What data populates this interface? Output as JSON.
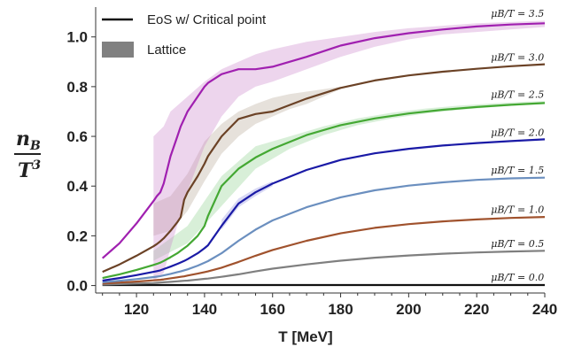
{
  "chart_data": {
    "type": "line",
    "xlabel": "T [MeV]",
    "ylabel": "n_B / T^3",
    "ylabel_num": "n",
    "ylabel_num_sub": "B",
    "ylabel_den": "T",
    "ylabel_den_sup": "3",
    "xlim": [
      108,
      240
    ],
    "ylim": [
      -0.03,
      1.12
    ],
    "xticks": [
      120,
      140,
      160,
      180,
      200,
      220,
      240
    ],
    "yticks": [
      0.0,
      0.2,
      0.4,
      0.6,
      0.8,
      1.0
    ],
    "grid": false,
    "legend_position": "top-left",
    "legend": [
      {
        "label": "EoS w/ Critical point",
        "kind": "line",
        "color": "#000000"
      },
      {
        "label": "Lattice",
        "kind": "band",
        "color": "#808080"
      }
    ],
    "x": [
      110,
      115,
      120,
      125,
      126,
      127,
      128,
      130,
      132,
      133,
      134,
      135,
      138,
      140,
      141,
      145,
      150,
      155,
      160,
      170,
      180,
      190,
      200,
      210,
      220,
      230,
      240
    ],
    "series": [
      {
        "name": "μB/T = 0.0",
        "color": "#111111",
        "values": [
          0.002,
          0.002,
          0.002,
          0.002,
          0.002,
          0.002,
          0.002,
          0.002,
          0.002,
          0.002,
          0.002,
          0.002,
          0.002,
          0.002,
          0.002,
          0.002,
          0.002,
          0.002,
          0.002,
          0.002,
          0.002,
          0.002,
          0.002,
          0.002,
          0.002,
          0.002,
          0.002
        ]
      },
      {
        "name": "μB/T = 0.5",
        "color": "#7f7f7f",
        "values": [
          0.004,
          0.006,
          0.008,
          0.01,
          0.011,
          0.012,
          0.013,
          0.015,
          0.017,
          0.018,
          0.019,
          0.02,
          0.024,
          0.027,
          0.028,
          0.035,
          0.045,
          0.057,
          0.068,
          0.085,
          0.1,
          0.112,
          0.121,
          0.128,
          0.133,
          0.137,
          0.14
        ]
      },
      {
        "name": "μB/T = 1.0",
        "color": "#a0522d",
        "values": [
          0.008,
          0.012,
          0.016,
          0.021,
          0.022,
          0.023,
          0.025,
          0.029,
          0.033,
          0.035,
          0.037,
          0.04,
          0.048,
          0.054,
          0.057,
          0.072,
          0.095,
          0.12,
          0.143,
          0.18,
          0.21,
          0.232,
          0.247,
          0.258,
          0.266,
          0.272,
          0.276
        ]
      },
      {
        "name": "μB/T = 1.5",
        "color": "#6b8fbf",
        "values": [
          0.013,
          0.019,
          0.026,
          0.034,
          0.036,
          0.038,
          0.041,
          0.047,
          0.054,
          0.057,
          0.061,
          0.065,
          0.08,
          0.092,
          0.098,
          0.13,
          0.18,
          0.225,
          0.262,
          0.315,
          0.355,
          0.383,
          0.402,
          0.415,
          0.425,
          0.431,
          0.434
        ]
      },
      {
        "name": "μB/T = 2.0",
        "color": "#1a1aa6",
        "values": [
          0.02,
          0.03,
          0.042,
          0.055,
          0.058,
          0.061,
          0.066,
          0.076,
          0.087,
          0.093,
          0.099,
          0.106,
          0.13,
          0.15,
          0.162,
          0.24,
          0.33,
          0.375,
          0.41,
          0.465,
          0.505,
          0.532,
          0.55,
          0.563,
          0.573,
          0.581,
          0.588
        ]
      },
      {
        "name": "μB/T = 2.5",
        "color": "#44a833",
        "values": [
          0.03,
          0.045,
          0.063,
          0.083,
          0.087,
          0.092,
          0.099,
          0.114,
          0.13,
          0.14,
          0.15,
          0.16,
          0.2,
          0.24,
          0.28,
          0.4,
          0.47,
          0.515,
          0.55,
          0.605,
          0.645,
          0.672,
          0.692,
          0.707,
          0.718,
          0.727,
          0.734
        ]
      },
      {
        "name": "μB/T = 3.0",
        "color": "#6b4226",
        "values": [
          0.055,
          0.085,
          0.12,
          0.158,
          0.167,
          0.178,
          0.19,
          0.22,
          0.255,
          0.275,
          0.345,
          0.375,
          0.44,
          0.49,
          0.52,
          0.6,
          0.67,
          0.69,
          0.7,
          0.752,
          0.795,
          0.825,
          0.845,
          0.86,
          0.872,
          0.882,
          0.89
        ]
      },
      {
        "name": "μB/T = 3.5",
        "color": "#a020b0",
        "values": [
          0.11,
          0.17,
          0.25,
          0.34,
          0.36,
          0.375,
          0.41,
          0.52,
          0.6,
          0.64,
          0.67,
          0.7,
          0.76,
          0.8,
          0.815,
          0.85,
          0.87,
          0.87,
          0.88,
          0.92,
          0.965,
          0.995,
          1.015,
          1.03,
          1.042,
          1.05,
          1.055
        ]
      }
    ],
    "bands": [
      {
        "name": "Lattice μB/T = 2.0",
        "color": "#9090e0",
        "x": [
          145,
          150,
          155,
          160
        ],
        "low": [
          0.225,
          0.315,
          0.36,
          0.4
        ],
        "high": [
          0.265,
          0.35,
          0.39,
          0.42
        ]
      },
      {
        "name": "Lattice μB/T = 2.5",
        "color": "#8fd08f",
        "x": [
          125,
          135,
          145,
          155,
          165,
          175,
          185,
          195,
          205,
          215,
          225,
          235,
          240
        ],
        "low": [
          0.1,
          0.17,
          0.32,
          0.47,
          0.55,
          0.605,
          0.645,
          0.672,
          0.692,
          0.707,
          0.718,
          0.727,
          0.73
        ],
        "high": [
          0.14,
          0.24,
          0.44,
          0.56,
          0.6,
          0.64,
          0.672,
          0.695,
          0.712,
          0.724,
          0.733,
          0.74,
          0.742
        ]
      },
      {
        "name": "Lattice μB/T = 3.0",
        "color": "#b8a898",
        "x": [
          125,
          130,
          135,
          140,
          145,
          150,
          155,
          160,
          165,
          170,
          175,
          180
        ],
        "low": [
          0.2,
          0.22,
          0.3,
          0.42,
          0.53,
          0.6,
          0.65,
          0.68,
          0.71,
          0.73,
          0.76,
          0.79
        ],
        "high": [
          0.33,
          0.36,
          0.45,
          0.58,
          0.65,
          0.7,
          0.73,
          0.755,
          0.77,
          0.78,
          0.79,
          0.8
        ]
      },
      {
        "name": "Lattice μB/T = 3.5",
        "color": "#cc88cc",
        "x": [
          125,
          128,
          130,
          135,
          140,
          145,
          150,
          155,
          160,
          170,
          180,
          190,
          200,
          210,
          220,
          230,
          240
        ],
        "low": [
          0.02,
          0.05,
          0.15,
          0.38,
          0.56,
          0.68,
          0.76,
          0.8,
          0.82,
          0.87,
          0.92,
          0.96,
          0.99,
          1.01,
          1.02,
          1.03,
          1.04
        ],
        "high": [
          0.6,
          0.64,
          0.7,
          0.76,
          0.82,
          0.87,
          0.9,
          0.93,
          0.95,
          0.98,
          1.0,
          1.02,
          1.035,
          1.045,
          1.055,
          1.06,
          1.065
        ]
      }
    ],
    "curve_labels": [
      {
        "text": "μB/T = 3.5",
        "x": 232,
        "y": 1.08
      },
      {
        "text": "μB/T = 3.0",
        "x": 232,
        "y": 0.905
      },
      {
        "text": "μB/T = 2.5",
        "x": 232,
        "y": 0.755
      },
      {
        "text": "μB/T = 2.0",
        "x": 232,
        "y": 0.602
      },
      {
        "text": "μB/T = 1.5",
        "x": 232,
        "y": 0.45
      },
      {
        "text": "μB/T = 1.0",
        "x": 232,
        "y": 0.292
      },
      {
        "text": "μB/T = 0.5",
        "x": 232,
        "y": 0.155
      },
      {
        "text": "μB/T = 0.0",
        "x": 232,
        "y": 0.02
      }
    ]
  }
}
